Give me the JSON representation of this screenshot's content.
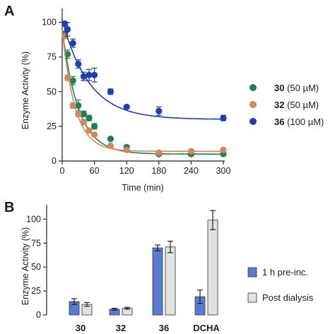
{
  "chart_data": [
    {
      "panel": "A",
      "type": "scatter",
      "xlabel": "Time (min)",
      "ylabel": "Enzyme Activity (%)",
      "xlim": [
        0,
        300
      ],
      "ylim": [
        0,
        110
      ],
      "xticks": [
        0,
        60,
        120,
        180,
        240,
        300
      ],
      "yticks": [
        0,
        25,
        50,
        75,
        100
      ],
      "legend_position": "right",
      "grid": false,
      "series": [
        {
          "name": "30 (50 µM)",
          "name_bold": "30",
          "name_rest": " (50 µM)",
          "color": "#1f7f57",
          "x": [
            5,
            10,
            20,
            30,
            40,
            50,
            60,
            90,
            120,
            180,
            240,
            300
          ],
          "y": [
            92,
            77,
            58,
            40,
            34,
            31,
            25,
            16,
            10,
            5,
            5,
            5
          ],
          "err": [
            0,
            3,
            3,
            4,
            2,
            2,
            2,
            1,
            1,
            1,
            1,
            1
          ],
          "fit": {
            "y0": 95,
            "plateau": 5,
            "k": 0.033
          }
        },
        {
          "name": "32 (50 µM)",
          "name_bold": "32",
          "name_rest": " (50 µM)",
          "color": "#d2875a",
          "x": [
            5,
            10,
            20,
            30,
            40,
            50,
            60,
            90,
            120,
            180,
            240,
            300
          ],
          "y": [
            90,
            60,
            40,
            34,
            28,
            22,
            19,
            11,
            8,
            6,
            7,
            8
          ],
          "err": [
            0,
            2,
            2,
            2,
            2,
            1,
            1,
            1,
            1,
            1,
            1,
            1
          ],
          "fit": {
            "y0": 95,
            "plateau": 7,
            "k": 0.042
          }
        },
        {
          "name": "36 (100 µM)",
          "name_bold": "36",
          "name_rest": " (100 µM)",
          "color": "#1f3fae",
          "x": [
            5,
            10,
            20,
            30,
            40,
            50,
            60,
            90,
            120,
            180,
            300
          ],
          "y": [
            99,
            95,
            85,
            70,
            61,
            62,
            62,
            50,
            39,
            36,
            31
          ],
          "err": [
            0,
            5,
            3,
            3,
            3,
            4,
            5,
            2,
            1,
            3,
            2
          ],
          "fit": {
            "y0": 102,
            "plateau": 30,
            "k": 0.02
          }
        }
      ]
    },
    {
      "panel": "B",
      "type": "bar",
      "ylabel": "Enzyme Activity (%)",
      "ylim": [
        0,
        115
      ],
      "yticks": [
        0,
        25,
        50,
        75,
        100
      ],
      "categories": [
        "30",
        "32",
        "36",
        "DCHA"
      ],
      "legend_position": "right",
      "grid": false,
      "series": [
        {
          "name": "1 h pre-inc.",
          "color": "#5a7bd4",
          "values": [
            14,
            6,
            70,
            19
          ],
          "err": [
            3,
            1,
            3,
            7
          ]
        },
        {
          "name": "Post dialysis",
          "color": "#e1e1e1",
          "values": [
            11,
            7,
            71,
            99
          ],
          "err": [
            2,
            1,
            6,
            10
          ]
        }
      ]
    }
  ]
}
